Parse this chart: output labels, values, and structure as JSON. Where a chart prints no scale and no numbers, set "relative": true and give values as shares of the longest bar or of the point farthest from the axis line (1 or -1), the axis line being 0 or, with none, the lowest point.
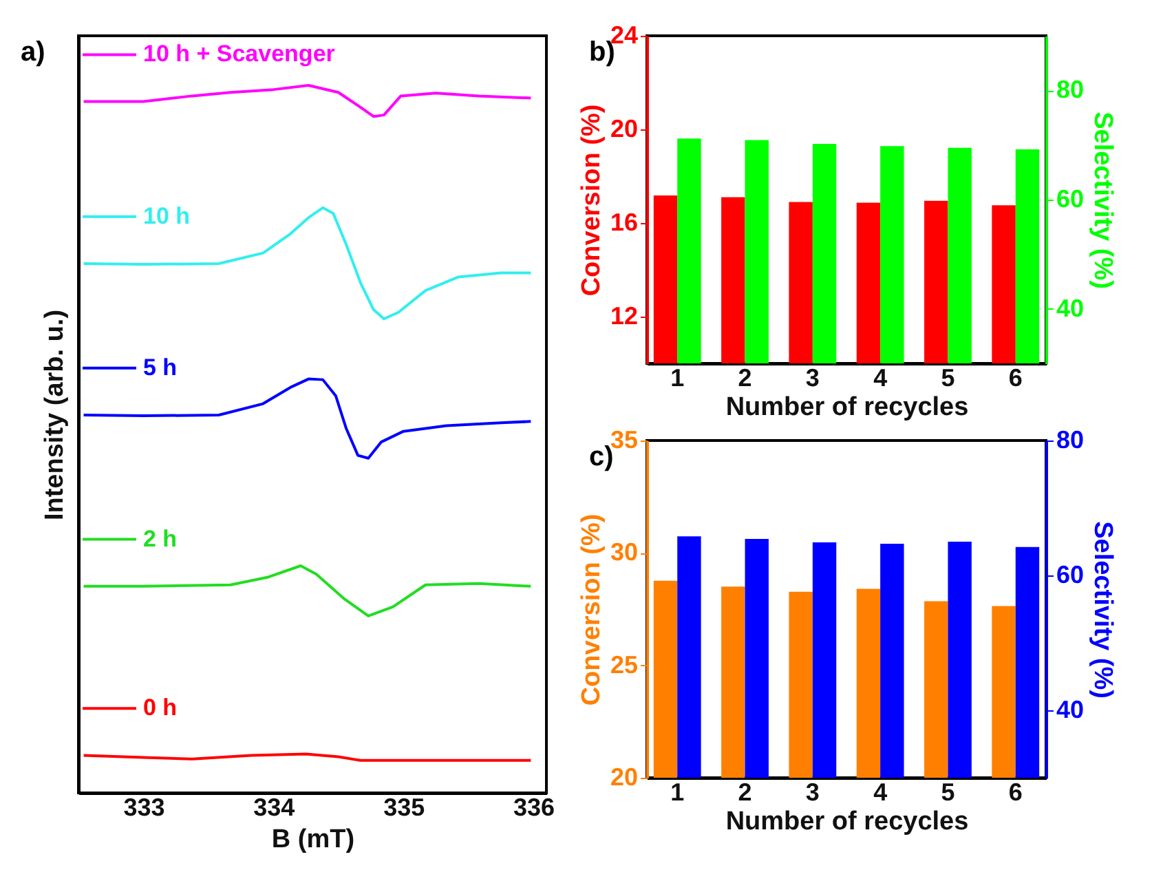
{
  "chart_data": [
    {
      "type": "line",
      "relative": true,
      "legend": "left",
      "xlabel": "B (mT)",
      "ylabel": "Intensity (arb. u.)",
      "xlim": [
        332.5,
        336.1
      ],
      "xticks": [
        333,
        334,
        335,
        336
      ],
      "annotations": [
        "a)"
      ],
      "series": [
        {
          "name": "10 h + Scavenger",
          "color": "#ff00ff",
          "x": [
            332.54,
            333.0,
            333.375,
            333.67,
            334.0,
            334.27,
            334.5,
            334.67,
            334.77,
            334.85,
            334.98,
            335.25,
            335.58,
            335.98
          ],
          "values": [
            0.977,
            0.977,
            0.985,
            0.99,
            0.994,
            1.0,
            0.99,
            0.969,
            0.956,
            0.958,
            0.985,
            0.989,
            0.985,
            0.982
          ]
        },
        {
          "name": "10 h",
          "color": "#33eeee",
          "x": [
            332.54,
            333.0,
            333.58,
            333.92,
            334.13,
            334.27,
            334.38,
            334.46,
            334.56,
            334.67,
            334.77,
            334.85,
            334.96,
            335.17,
            335.42,
            335.75,
            335.98
          ],
          "values": [
            0.748,
            0.747,
            0.748,
            0.763,
            0.79,
            0.813,
            0.827,
            0.819,
            0.775,
            0.721,
            0.683,
            0.67,
            0.679,
            0.71,
            0.729,
            0.735,
            0.735
          ]
        },
        {
          "name": "5 h",
          "color": "#0000ff",
          "x": [
            332.54,
            333.0,
            333.58,
            333.92,
            334.13,
            334.27,
            334.38,
            334.48,
            334.56,
            334.65,
            334.73,
            334.83,
            335.0,
            335.33,
            335.75,
            335.98
          ],
          "values": [
            0.534,
            0.533,
            0.534,
            0.55,
            0.573,
            0.585,
            0.584,
            0.561,
            0.515,
            0.477,
            0.473,
            0.496,
            0.511,
            0.519,
            0.523,
            0.525
          ]
        },
        {
          "name": "2 h",
          "color": "#22dd22",
          "x": [
            332.54,
            333.0,
            333.67,
            333.96,
            334.21,
            334.33,
            334.54,
            334.73,
            334.92,
            335.17,
            335.58,
            335.98
          ],
          "values": [
            0.292,
            0.292,
            0.294,
            0.305,
            0.321,
            0.309,
            0.275,
            0.25,
            0.263,
            0.294,
            0.296,
            0.292
          ]
        },
        {
          "name": "0 h",
          "color": "#ff0000",
          "x": [
            332.54,
            333.0,
            333.375,
            333.83,
            334.25,
            334.5,
            334.67,
            335.17,
            335.98
          ],
          "values": [
            0.053,
            0.05,
            0.048,
            0.053,
            0.055,
            0.051,
            0.046,
            0.046,
            0.046
          ]
        }
      ]
    },
    {
      "type": "bar",
      "xlabel": "Number of recycles",
      "ylabel": "Conversion (%)",
      "y2label": "Selectivity (%)",
      "categories": [
        "1",
        "2",
        "3",
        "4",
        "5",
        "6"
      ],
      "ylim": [
        10,
        24
      ],
      "yticks": [
        12,
        16,
        20,
        24
      ],
      "y2lim": [
        30,
        90
      ],
      "y2ticks": [
        40,
        60,
        80
      ],
      "annotations": [
        "b)"
      ],
      "series": [
        {
          "color": "#ff0000",
          "values": [
            17.18,
            17.1,
            16.9,
            16.87,
            16.95,
            16.76
          ]
        },
        {
          "color": "#00ff00",
          "axis": "y2",
          "values": [
            71.2,
            70.9,
            70.2,
            69.8,
            69.5,
            69.2
          ]
        }
      ]
    },
    {
      "type": "bar",
      "xlabel": "Number of recycles",
      "ylabel": "Conversion (%)",
      "y2label": "Selectivity (%)",
      "categories": [
        "1",
        "2",
        "3",
        "4",
        "5",
        "6"
      ],
      "ylim": [
        20,
        35
      ],
      "yticks": [
        20,
        25,
        30,
        35
      ],
      "y2lim": [
        30,
        80
      ],
      "y2ticks": [
        40,
        60,
        80
      ],
      "annotations": [
        "c)"
      ],
      "series": [
        {
          "color": "#ff8000",
          "values": [
            28.76,
            28.5,
            28.27,
            28.4,
            27.85,
            27.64
          ]
        },
        {
          "color": "#0000ff",
          "axis": "y2",
          "values": [
            65.8,
            65.4,
            64.9,
            64.7,
            65.0,
            64.2
          ]
        }
      ]
    }
  ]
}
